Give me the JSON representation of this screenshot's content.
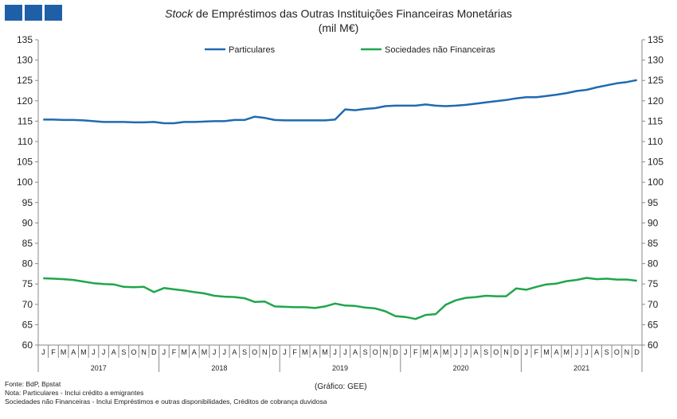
{
  "logo": {
    "color": "#1f5fa8"
  },
  "header": {
    "title_italic": "Stock",
    "title_rest": " de Empréstimos  das Outras Instituições  Financeiras Monetárias",
    "subtitle": "(mil M€)"
  },
  "footer": {
    "source": "Fonte: BdP, Bpstat",
    "note1": "Nota: Particulares - Inclui crédito a emigrantes",
    "note2": "Sociedades não Financeiras - Inclui Empréstimos e outras disponibilidades, Créditos de cobrança duvidosa",
    "credit": "(Gráfico: GEE)"
  },
  "chart_data": {
    "type": "line",
    "title": "Stock de Empréstimos das Outras Instituições Financeiras Monetárias",
    "ylabel": "(mil M€)",
    "ylim": [
      60,
      135
    ],
    "y_ticks": [
      60,
      65,
      70,
      75,
      80,
      85,
      90,
      95,
      100,
      105,
      110,
      115,
      120,
      125,
      130,
      135
    ],
    "grid": false,
    "legend_position": "top",
    "month_labels": [
      "J",
      "F",
      "M",
      "A",
      "M",
      "J",
      "J",
      "A",
      "S",
      "O",
      "N",
      "D"
    ],
    "years": [
      "2017",
      "2018",
      "2019",
      "2020",
      "2021"
    ],
    "series": [
      {
        "name": "Particulares",
        "color": "#1f6bb0",
        "values": [
          115.4,
          115.4,
          115.3,
          115.3,
          115.2,
          115.0,
          114.8,
          114.8,
          114.8,
          114.7,
          114.7,
          114.8,
          114.5,
          114.5,
          114.8,
          114.8,
          114.9,
          115.0,
          115.0,
          115.3,
          115.3,
          116.1,
          115.8,
          115.3,
          115.2,
          115.2,
          115.2,
          115.2,
          115.2,
          115.4,
          117.9,
          117.7,
          118.0,
          118.2,
          118.7,
          118.8,
          118.8,
          118.8,
          119.1,
          118.8,
          118.7,
          118.8,
          119.0,
          119.3,
          119.6,
          119.9,
          120.2,
          120.6,
          120.9,
          120.9,
          121.2,
          121.5,
          121.9,
          122.4,
          122.7,
          123.3,
          123.8,
          124.3,
          124.6,
          125.1
        ]
      },
      {
        "name": "Sociedades não Financeiras",
        "color": "#1fa64b",
        "values": [
          76.4,
          76.3,
          76.2,
          76.0,
          75.6,
          75.2,
          75.0,
          74.9,
          74.3,
          74.2,
          74.3,
          73.0,
          74.0,
          73.7,
          73.4,
          73.0,
          72.7,
          72.1,
          71.9,
          71.8,
          71.5,
          70.6,
          70.7,
          69.5,
          69.4,
          69.3,
          69.3,
          69.1,
          69.5,
          70.2,
          69.7,
          69.6,
          69.2,
          69.0,
          68.3,
          67.1,
          66.9,
          66.4,
          67.4,
          67.6,
          69.9,
          71.0,
          71.6,
          71.8,
          72.1,
          72.0,
          72.0,
          73.9,
          73.6,
          74.3,
          74.9,
          75.1,
          75.7,
          76.0,
          76.5,
          76.2,
          76.3,
          76.1,
          76.1,
          75.8
        ]
      }
    ]
  }
}
